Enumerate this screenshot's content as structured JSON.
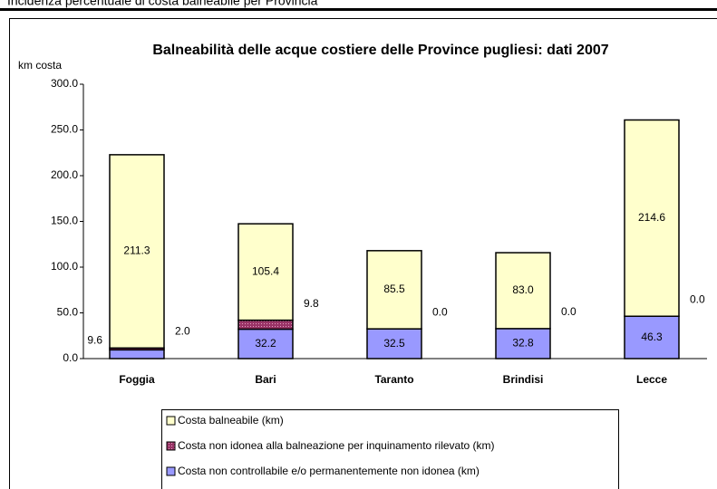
{
  "header": "Incidenza percentuale di costa balneabile per Provincia",
  "chart_data": {
    "type": "bar",
    "stacked": true,
    "title": "Balneabilità delle acque costiere delle Province pugliesi: dati 2007",
    "y_label": "km costa",
    "categories": [
      "Foggia",
      "Bari",
      "Taranto",
      "Brindisi",
      "Lecce"
    ],
    "series": [
      {
        "name": "Costa non controllabile e/o permanentemente non idonea (km)",
        "color": "#9999ff",
        "values": [
          9.6,
          32.2,
          32.5,
          32.8,
          46.3
        ],
        "value_labels": [
          "9.6",
          "32.2",
          "32.5",
          "32.8",
          "46.3"
        ]
      },
      {
        "name": "Costa non idonea alla balneazione per inquinamento rilevato (km)",
        "color": "#993366",
        "values": [
          2.0,
          9.8,
          0.0,
          0.0,
          0.0
        ],
        "value_labels": [
          "2.0",
          "9.8",
          "0.0",
          "0.0",
          "0.0"
        ]
      },
      {
        "name": "Costa balneabile (km)",
        "color": "#ffffcc",
        "values": [
          211.3,
          105.4,
          85.5,
          83.0,
          214.6
        ],
        "value_labels": [
          "211.3",
          "105.4",
          "85.5",
          "83.0",
          "214.6"
        ]
      }
    ],
    "ylim": [
      0,
      300
    ],
    "yticks": [
      {
        "value": 0,
        "label": "0.0"
      },
      {
        "value": 50,
        "label": "50.0"
      },
      {
        "value": 100,
        "label": "100.0"
      },
      {
        "value": 150,
        "label": "150.0"
      },
      {
        "value": 200,
        "label": "200.0"
      },
      {
        "value": 250,
        "label": "250.0"
      },
      {
        "value": 300,
        "label": "300.0"
      }
    ]
  }
}
